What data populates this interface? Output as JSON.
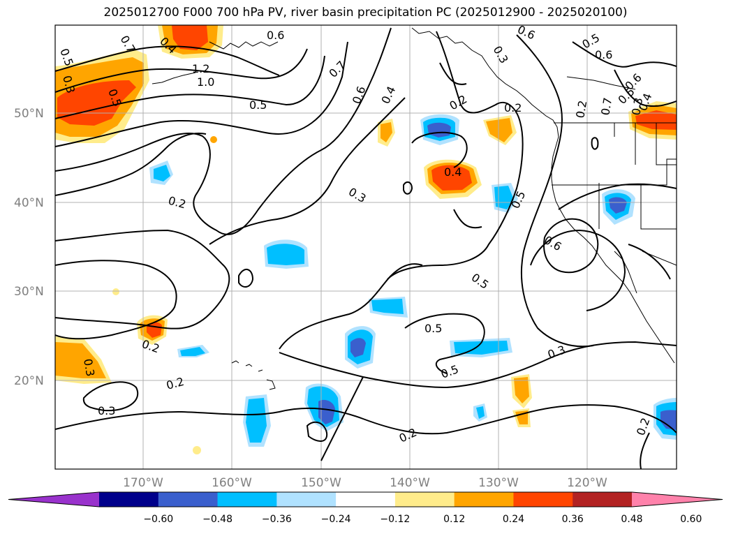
{
  "title": "2025012700 F000 700 hPa PV, river basin precipitation PC (2025012900 - 2025020100)",
  "axes": {
    "lat_labels": [
      "50°N",
      "40°N",
      "30°N",
      "20°N"
    ],
    "lon_labels": [
      "170°W",
      "160°W",
      "150°W",
      "140°W",
      "130°W",
      "120°W"
    ]
  },
  "colorbar": {
    "tick_labels": [
      "−0.60",
      "−0.48",
      "−0.36",
      "−0.24",
      "−0.12",
      "0.12",
      "0.24",
      "0.36",
      "0.48",
      "0.60"
    ],
    "colors": [
      "#9932cc",
      "#00008b",
      "#3a5fcd",
      "#00bfff",
      "#b0e2ff",
      "#ffffff",
      "#ffec8b",
      "#ffa500",
      "#ff4500",
      "#b22222",
      "#ff82ab"
    ]
  },
  "contour_labels": [
    "0.5",
    "0.7",
    "0.4",
    "0.3",
    "0.5",
    "1.2",
    "1.0",
    "0.5",
    "0.6",
    "0.7",
    "0.6",
    "0.4",
    "0.6",
    "0.2",
    "0.3",
    "0.2",
    "0.5",
    "0.6",
    "0.2",
    "0.3",
    "0.4",
    "0.5",
    "0.6",
    "0.7",
    "0.3",
    "0.5",
    "0.2",
    "0.2",
    "0.3",
    "0.3",
    "0.2",
    "0.5",
    "0.5",
    "0.3",
    "0.2",
    "0.2",
    "0.6",
    "0.4",
    "0.5"
  ],
  "shading_colors": {
    "neg_light": "#b0e2ff",
    "neg_mid": "#00bfff",
    "neg_dark": "#3a5fcd",
    "pos_light": "#ffec8b",
    "pos_mid": "#ffa500",
    "pos_dark": "#ff4500"
  }
}
